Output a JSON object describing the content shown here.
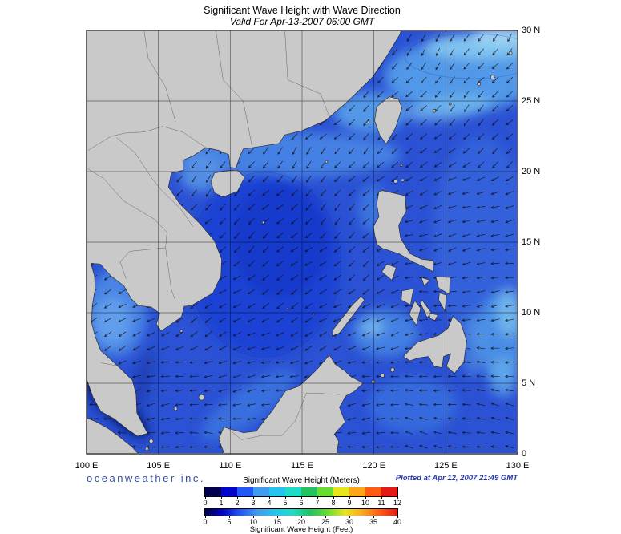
{
  "header": {
    "title": "Significant Wave Height with Wave Direction",
    "subtitle": "Valid For Apr-13-2007 06:00 GMT"
  },
  "axes": {
    "lon_ticks": [
      "100 E",
      "105 E",
      "110 E",
      "115 E",
      "120 E",
      "125 E",
      "130 E"
    ],
    "lat_ticks": [
      "30 N",
      "25 N",
      "20 N",
      "15 N",
      "10 N",
      "5 N",
      "0"
    ]
  },
  "legend": {
    "meters": {
      "title": "Significant Wave Height (Meters)",
      "ticks": [
        "0",
        "1",
        "2",
        "3",
        "4",
        "5",
        "6",
        "7",
        "8",
        "9",
        "10",
        "11",
        "12"
      ]
    },
    "feet": {
      "title": "Significant Wave Height (Feet)",
      "ticks": [
        "0",
        "5",
        "10",
        "15",
        "20",
        "25",
        "30",
        "35",
        "40"
      ]
    },
    "colors": [
      "#00004f",
      "#0003c8",
      "#2157f4",
      "#3f9cf0",
      "#25c4ee",
      "#1fdcc8",
      "#23c25f",
      "#66dd2e",
      "#e8e51e",
      "#ffa51c",
      "#ff5c12",
      "#e31a15"
    ]
  },
  "footer": {
    "brand": "oceanweather inc.",
    "plotted": "Plotted at Apr 12, 2007 21:49 GMT"
  },
  "colors": {
    "ocean": "#2b52d4",
    "land": "#c9c9c9",
    "coast": "#2e2e2e",
    "grid": "#000000",
    "arrow": "#0d0d0d",
    "deep_water": "#001050"
  }
}
